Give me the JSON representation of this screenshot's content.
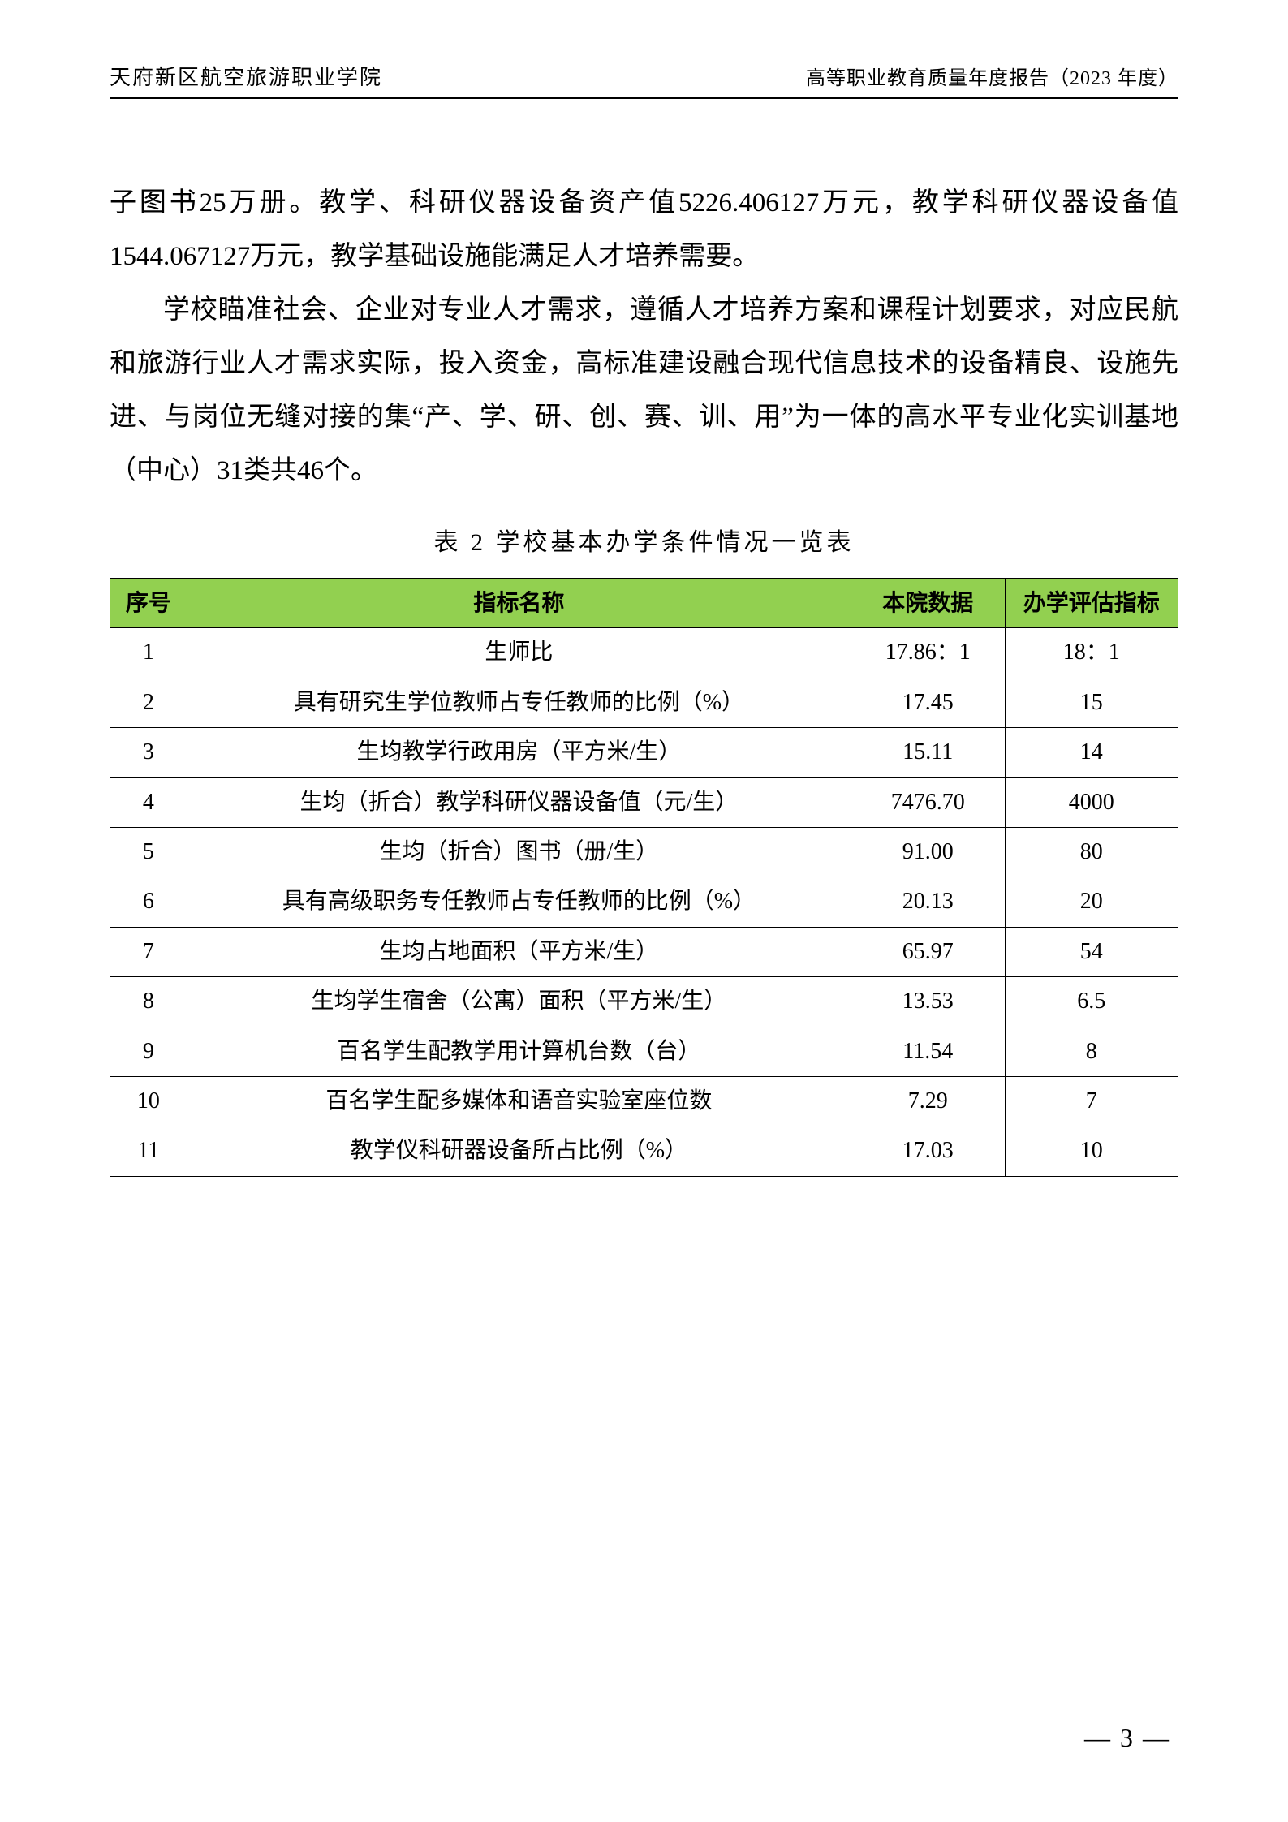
{
  "header": {
    "left": "天府新区航空旅游职业学院",
    "right": "高等职业教育质量年度报告（2023 年度）"
  },
  "paragraphs": {
    "p1": "子图书25万册。教学、科研仪器设备资产值5226.406127万元，教学科研仪器设备值1544.067127万元，教学基础设施能满足人才培养需要。",
    "p2": "学校瞄准社会、企业对专业人才需求，遵循人才培养方案和课程计划要求，对应民航和旅游行业人才需求实际，投入资金，高标准建设融合现代信息技术的设备精良、设施先进、与岗位无缝对接的集“产、学、研、创、赛、训、用”为一体的高水平专业化实训基地（中心）31类共46个。"
  },
  "table": {
    "caption": "表 2  学校基本办学条件情况一览表",
    "header_bg": "#92d050",
    "columns": [
      "序号",
      "指标名称",
      "本院数据",
      "办学评估指标"
    ],
    "rows": [
      [
        "1",
        "生师比",
        "17.86：1",
        "18：1"
      ],
      [
        "2",
        "具有研究生学位教师占专任教师的比例（%）",
        "17.45",
        "15"
      ],
      [
        "3",
        "生均教学行政用房（平方米/生）",
        "15.11",
        "14"
      ],
      [
        "4",
        "生均（折合）教学科研仪器设备值（元/生）",
        "7476.70",
        "4000"
      ],
      [
        "5",
        "生均（折合）图书（册/生）",
        "91.00",
        "80"
      ],
      [
        "6",
        "具有高级职务专任教师占专任教师的比例（%）",
        "20.13",
        "20"
      ],
      [
        "7",
        "生均占地面积（平方米/生）",
        "65.97",
        "54"
      ],
      [
        "8",
        "生均学生宿舍（公寓）面积（平方米/生）",
        "13.53",
        "6.5"
      ],
      [
        "9",
        "百名学生配教学用计算机台数（台）",
        "11.54",
        "8"
      ],
      [
        "10",
        "百名学生配多媒体和语音实验室座位数",
        "7.29",
        "7"
      ],
      [
        "11",
        "教学仪科研器设备所占比例（%）",
        "17.03",
        "10"
      ]
    ]
  },
  "page_number": "— 3 —"
}
